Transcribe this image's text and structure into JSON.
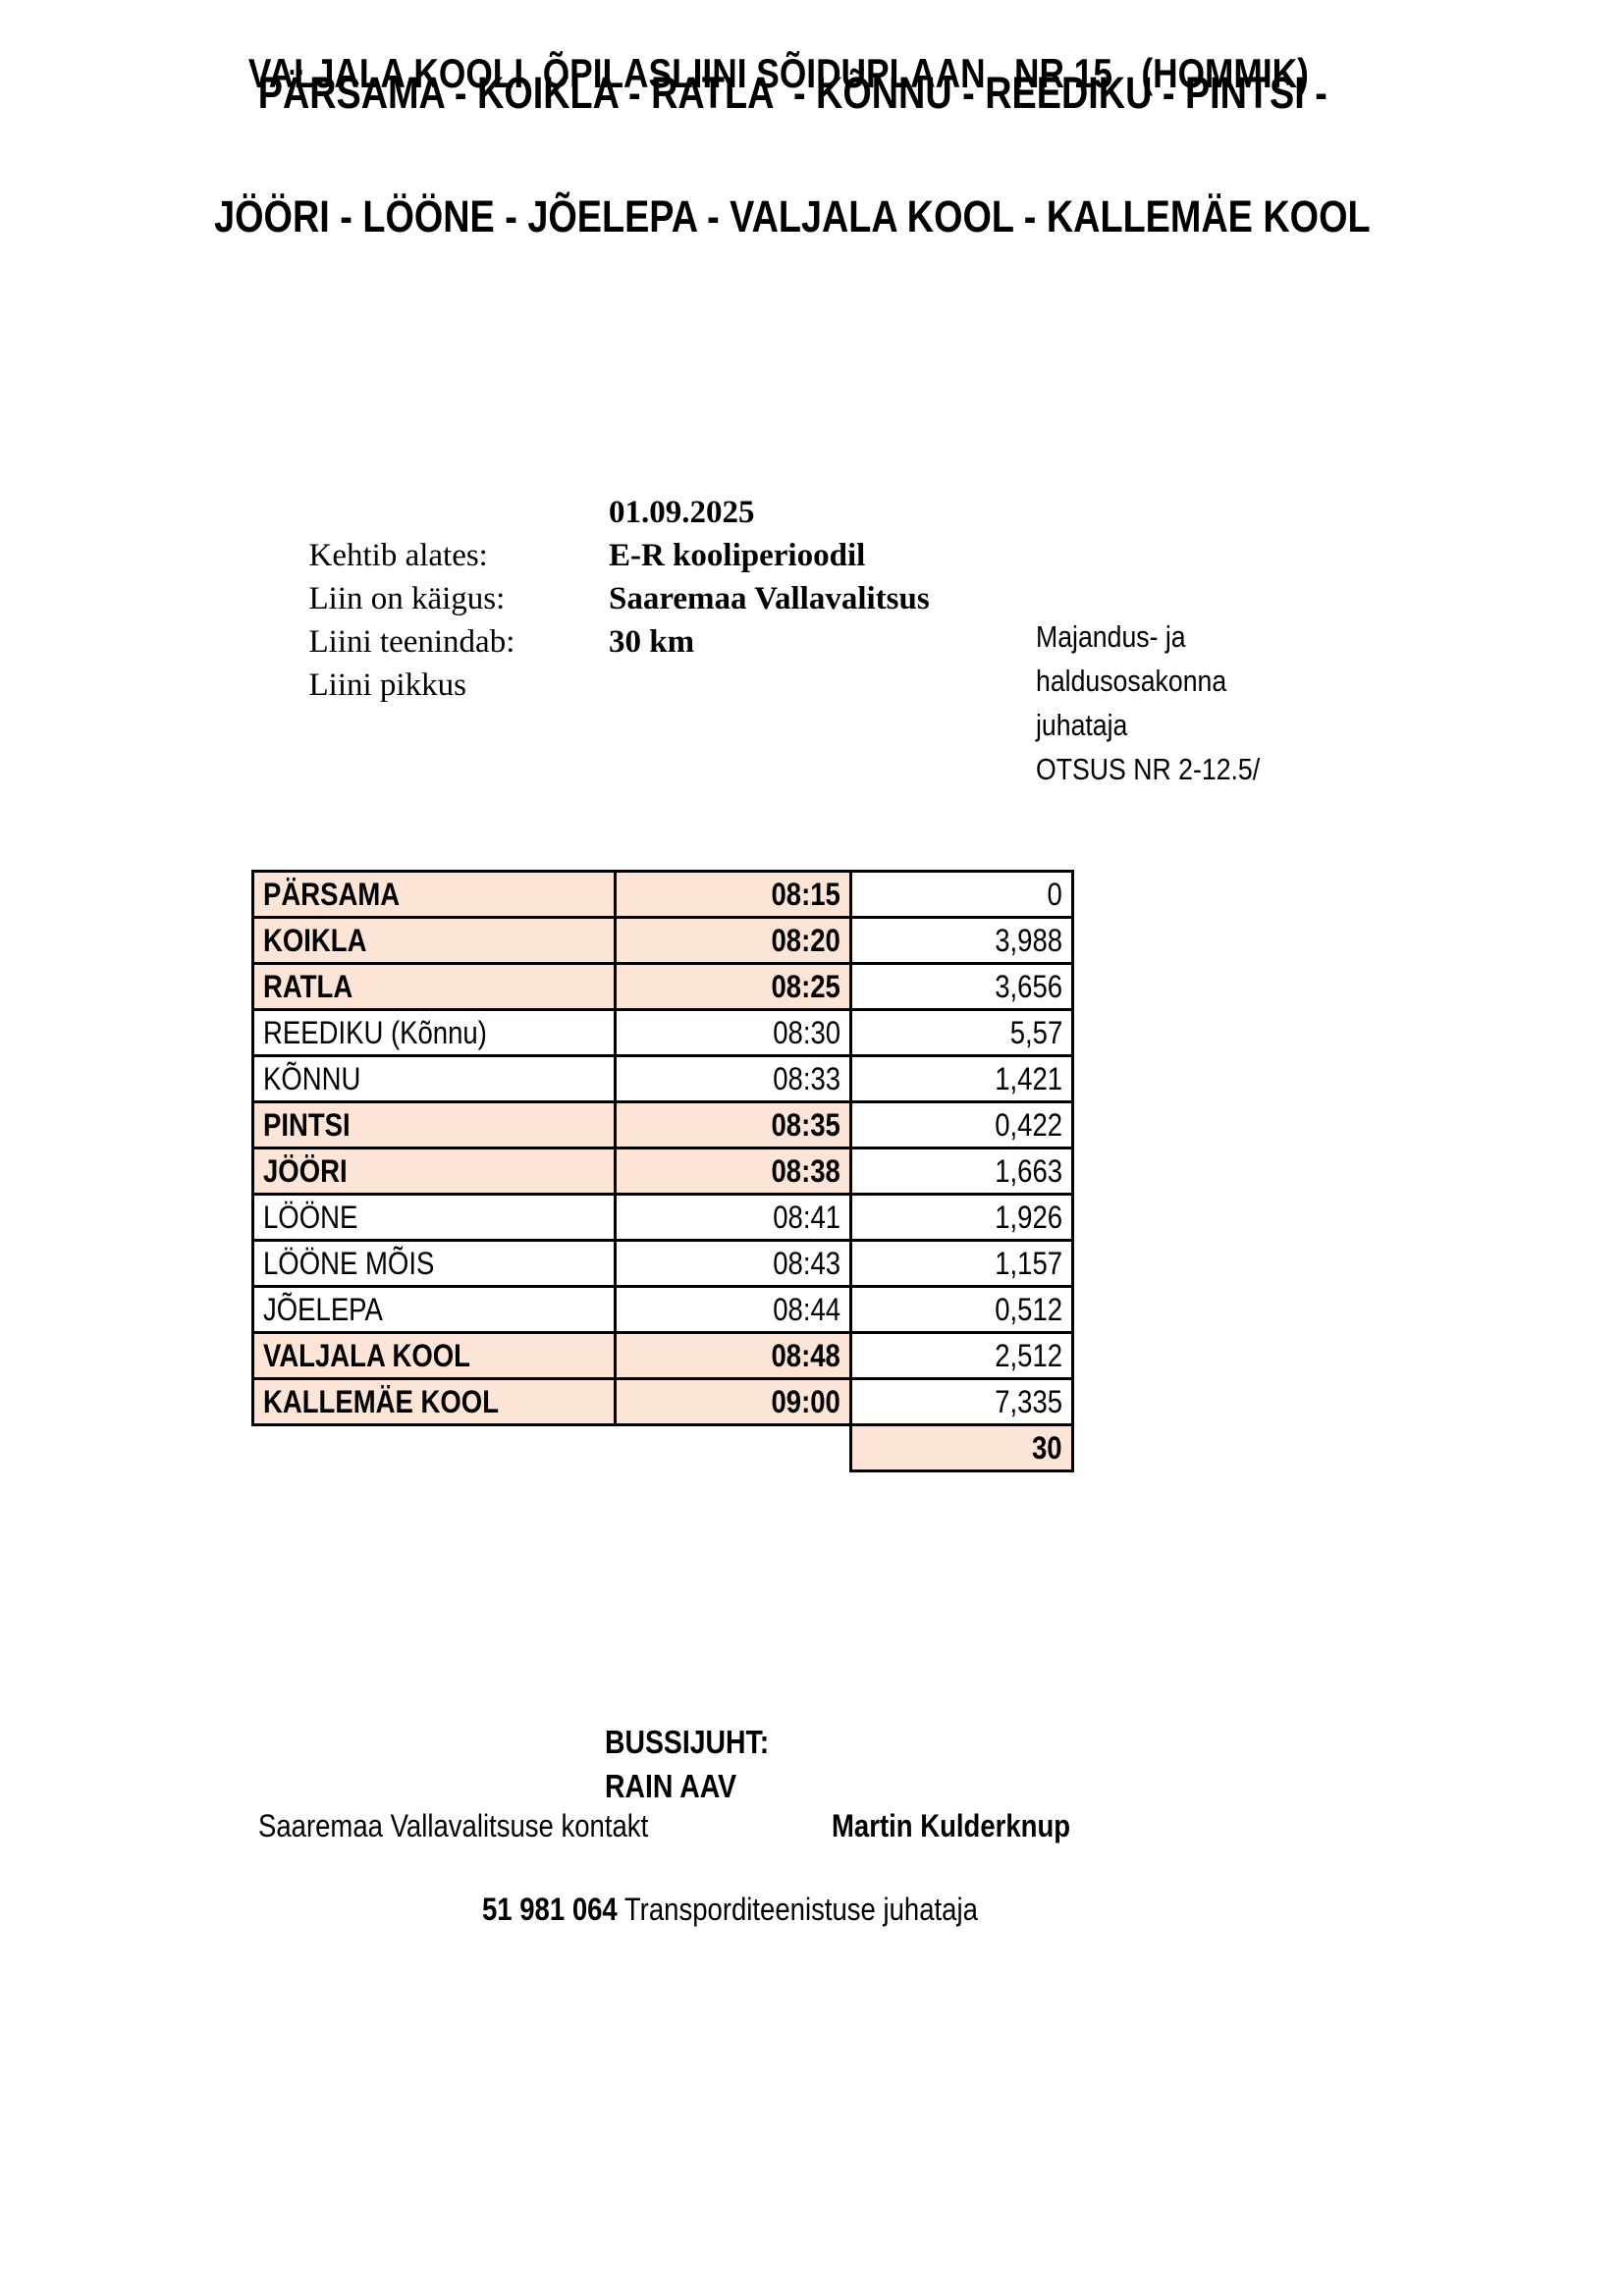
{
  "header": {
    "route_line1": "PÄRSAMA - KOIKLA - RATLA  - KÕNNU - REEDIKU - PINTSI -",
    "route_line2": "JÖÖRI - LÖÖNE - JÕELEPA - VALJALA KOOL - KALLEMÄE KOOL",
    "title": "VALJALA KOOLI  ÕPILASLIINI SÕIDUPLAAN   NR 15   (HOMMIK)"
  },
  "info": {
    "rows": [
      {
        "label": "Kehtib alates:",
        "value": "01.09.2025"
      },
      {
        "label": "Liin on käigus:",
        "value": "E-R kooliperioodil"
      },
      {
        "label": "Liini teenindab:",
        "value": "Saaremaa Vallavalitsus"
      },
      {
        "label": "Liini pikkus",
        "value": "30 km"
      }
    ],
    "approval": [
      "Majandus- ja",
      "haldusosakonna",
      "juhataja",
      "OTSUS NR 2-12.5/"
    ]
  },
  "timetable": {
    "rows": [
      {
        "stop": "PÄRSAMA",
        "time": "08:15",
        "km": "0",
        "highlight": true
      },
      {
        "stop": "KOIKLA",
        "time": "08:20",
        "km": "3,988",
        "highlight": true
      },
      {
        "stop": "RATLA",
        "time": "08:25",
        "km": "3,656",
        "highlight": true
      },
      {
        "stop": "REEDIKU (Kõnnu)",
        "time": "08:30",
        "km": "5,57",
        "highlight": false
      },
      {
        "stop": "KÕNNU",
        "time": "08:33",
        "km": "1,421",
        "highlight": false
      },
      {
        "stop": "PINTSI",
        "time": "08:35",
        "km": "0,422",
        "highlight": true
      },
      {
        "stop": "JÖÖRI",
        "time": "08:38",
        "km": "1,663",
        "highlight": true
      },
      {
        "stop": "LÖÖNE",
        "time": "08:41",
        "km": "1,926",
        "highlight": false
      },
      {
        "stop": "LÖÖNE MÕIS",
        "time": "08:43",
        "km": "1,157",
        "highlight": false
      },
      {
        "stop": "JÕELEPA",
        "time": "08:44",
        "km": "0,512",
        "highlight": false
      },
      {
        "stop": "VALJALA KOOL",
        "time": "08:48",
        "km": "2,512",
        "highlight": true
      },
      {
        "stop": "KALLEMÄE KOOL",
        "time": "09:00",
        "km": "7,335",
        "highlight": true
      }
    ],
    "total_km": "30"
  },
  "footer": {
    "driver_label": "BUSSIJUHT:",
    "driver_name": "RAIN AAV",
    "contact_label": "Saaremaa Vallavalitsuse kontakt",
    "contact_name": "Martin Kulderknup",
    "contact_phone": "51 981 064",
    "contact_title": "Transporditeenistuse juhataja"
  },
  "colors": {
    "highlight_fill": "#fce4d6",
    "border": "#000000",
    "text": "#000000",
    "background": "#ffffff"
  }
}
